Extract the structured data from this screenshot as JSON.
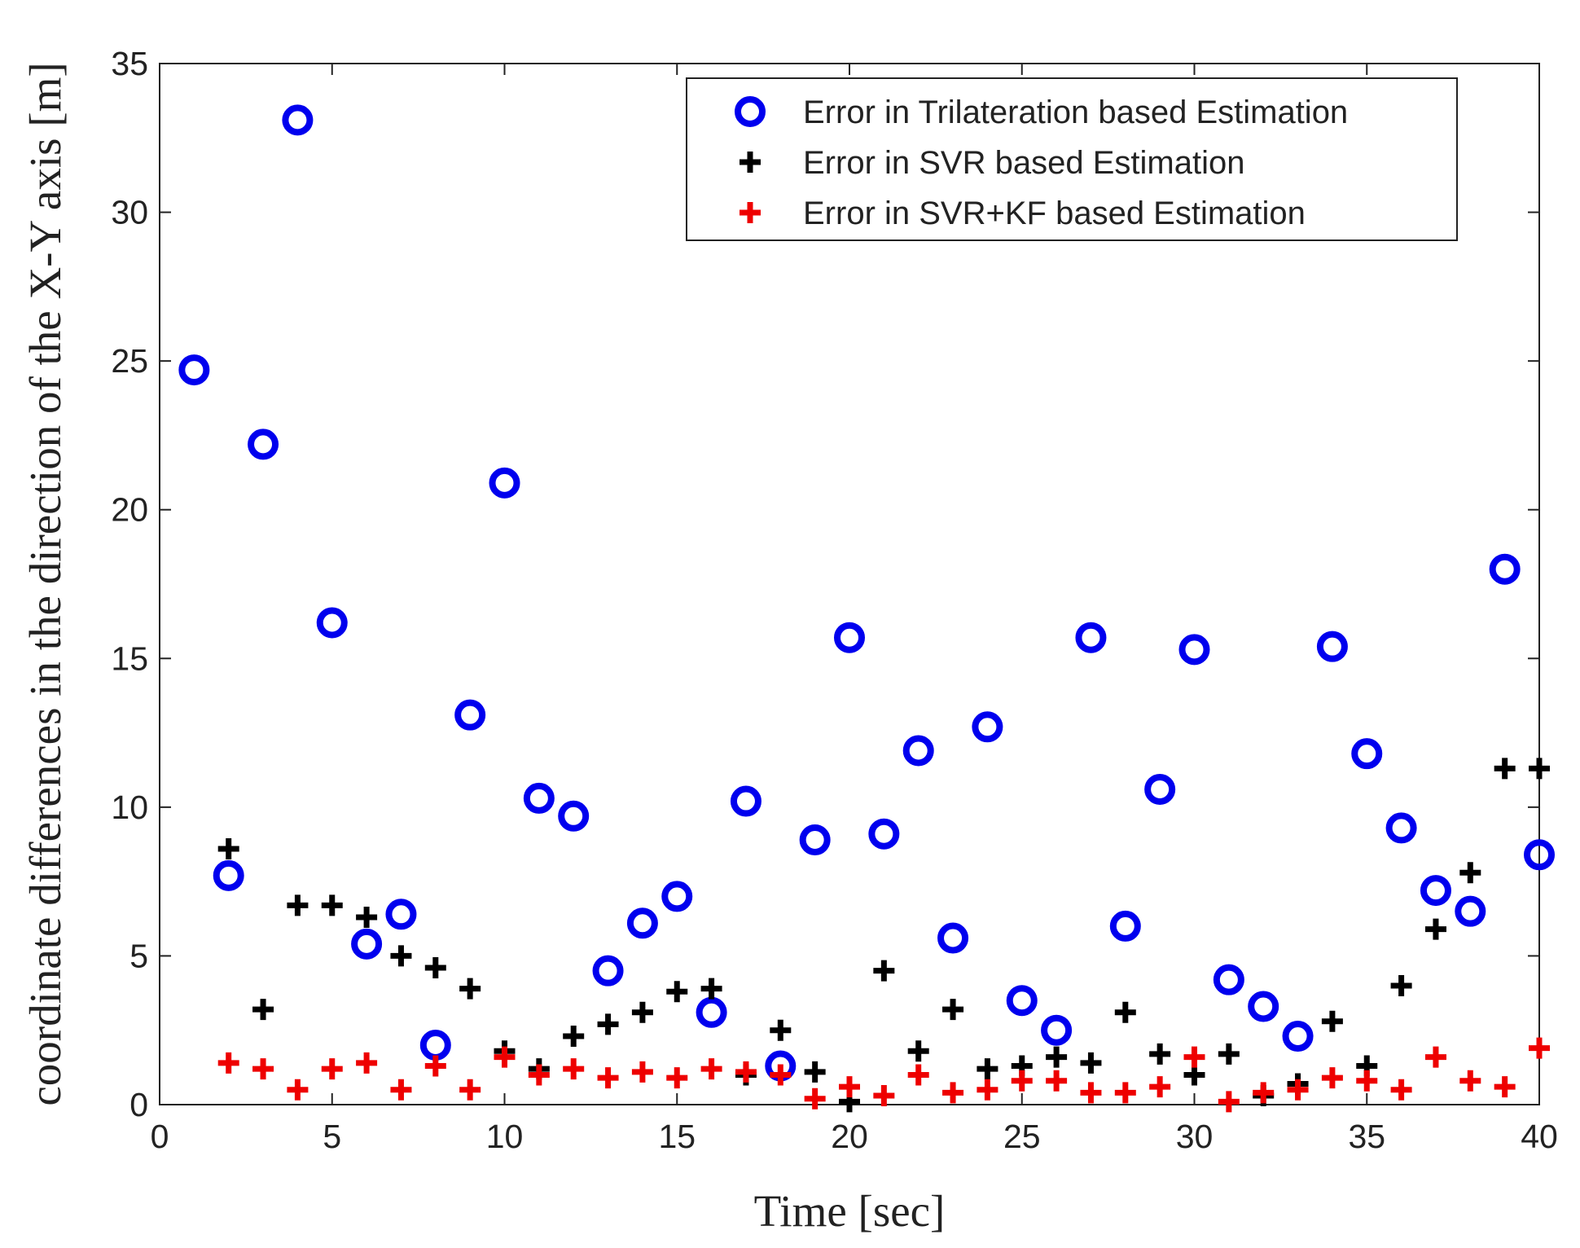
{
  "chart_data": {
    "type": "scatter",
    "title": "",
    "xlabel": "Time [sec]",
    "ylabel": "coordinate differences in the direction of the X-Y axis [m]",
    "xlim": [
      0,
      40
    ],
    "ylim": [
      0,
      35
    ],
    "xticks": [
      "0",
      "5",
      "10",
      "15",
      "20",
      "25",
      "30",
      "35",
      "40"
    ],
    "yticks": [
      "0",
      "5",
      "10",
      "15",
      "20",
      "25",
      "30",
      "35"
    ],
    "grid": false,
    "legend_position": "top-right",
    "series": [
      {
        "name": "Error in Trilateration based Estimation",
        "marker": "circle",
        "color": "#0000ee",
        "x": [
          1,
          2,
          3,
          4,
          5,
          6,
          7,
          8,
          9,
          10,
          11,
          12,
          13,
          14,
          15,
          16,
          17,
          18,
          19,
          20,
          21,
          22,
          23,
          24,
          25,
          26,
          27,
          28,
          29,
          30,
          31,
          32,
          33,
          34,
          35,
          36,
          37,
          38,
          39,
          40
        ],
        "y": [
          24.7,
          7.7,
          22.2,
          33.1,
          16.2,
          5.4,
          6.4,
          2.0,
          13.1,
          20.9,
          10.3,
          9.7,
          4.5,
          6.1,
          7.0,
          3.1,
          10.2,
          1.3,
          8.9,
          15.7,
          9.1,
          11.9,
          5.6,
          12.7,
          3.5,
          2.5,
          15.7,
          6.0,
          10.6,
          15.3,
          4.2,
          3.3,
          2.3,
          15.4,
          11.8,
          9.3,
          7.2,
          6.5,
          18.0,
          8.4
        ]
      },
      {
        "name": "Error in SVR based Estimation",
        "marker": "plus",
        "color": "#000000",
        "x": [
          2,
          3,
          4,
          5,
          6,
          7,
          8,
          9,
          10,
          11,
          12,
          13,
          14,
          15,
          16,
          17,
          18,
          19,
          20,
          21,
          22,
          23,
          24,
          25,
          26,
          27,
          28,
          29,
          30,
          31,
          32,
          33,
          34,
          35,
          36,
          37,
          38,
          39,
          40
        ],
        "y": [
          8.6,
          3.2,
          6.7,
          6.7,
          6.3,
          5.0,
          4.6,
          3.9,
          1.8,
          1.2,
          2.3,
          2.7,
          3.1,
          3.8,
          3.9,
          1.0,
          2.5,
          1.1,
          0.1,
          4.5,
          1.8,
          3.2,
          1.2,
          1.3,
          1.6,
          1.4,
          3.1,
          1.7,
          1.0,
          1.7,
          0.3,
          0.7,
          2.8,
          1.3,
          4.0,
          5.9,
          7.8,
          11.3,
          11.3
        ]
      },
      {
        "name": "Error in SVR+KF based Estimation",
        "marker": "plus",
        "color": "#ee0000",
        "x": [
          2,
          3,
          4,
          5,
          6,
          7,
          8,
          9,
          10,
          11,
          12,
          13,
          14,
          15,
          16,
          17,
          18,
          19,
          20,
          21,
          22,
          23,
          24,
          25,
          26,
          27,
          28,
          29,
          30,
          31,
          32,
          33,
          34,
          35,
          36,
          37,
          38,
          39,
          40
        ],
        "y": [
          1.4,
          1.2,
          0.5,
          1.2,
          1.4,
          0.5,
          1.3,
          0.5,
          1.6,
          1.0,
          1.2,
          0.9,
          1.1,
          0.9,
          1.2,
          1.1,
          1.0,
          0.2,
          0.6,
          0.3,
          1.0,
          0.4,
          0.5,
          0.8,
          0.8,
          0.4,
          0.4,
          0.6,
          1.6,
          0.1,
          0.4,
          0.5,
          0.9,
          0.8,
          0.5,
          1.6,
          0.8,
          0.6,
          1.9
        ]
      }
    ]
  }
}
